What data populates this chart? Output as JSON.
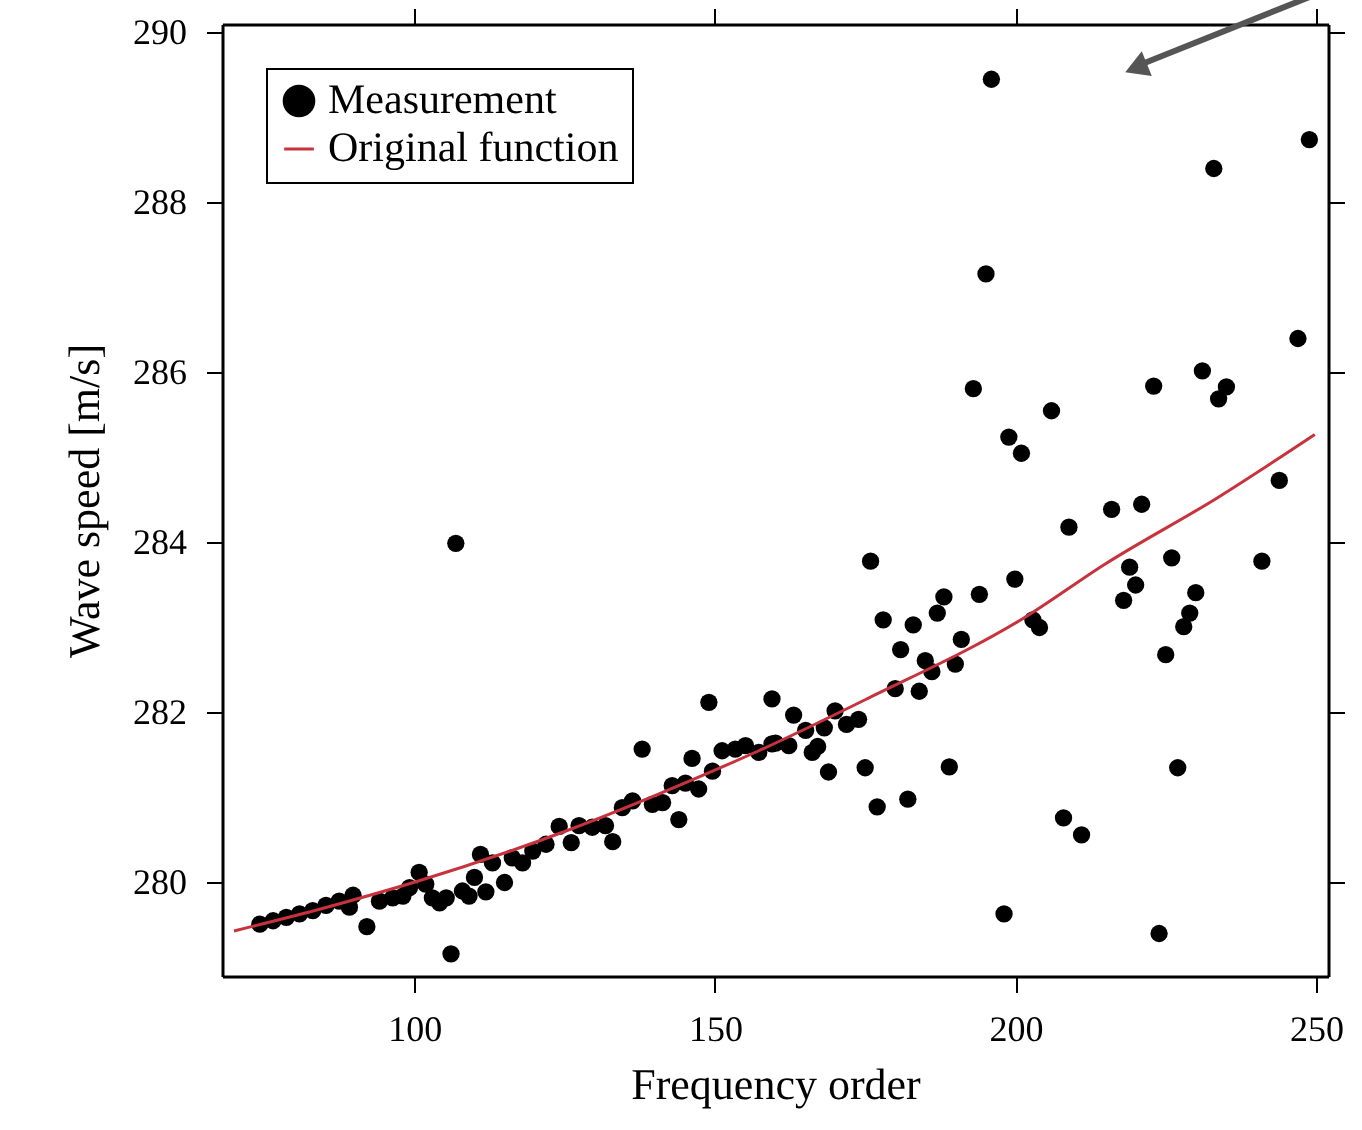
{
  "chart_data": {
    "type": "scatter",
    "xlabel": "Frequency order",
    "ylabel": "Wave speed  [m/s]",
    "xlim": [
      68,
      252
    ],
    "ylim": [
      278.9,
      290.1
    ],
    "xticks": [
      100,
      150,
      200,
      250
    ],
    "yticks": [
      280,
      282,
      284,
      286,
      288,
      290
    ],
    "grid": false,
    "legend": "top left",
    "marker": "circle",
    "series": [
      {
        "name": "Measurement",
        "color": "#000000",
        "x": [
          74.3,
          76.5,
          78.7,
          80.9,
          83.1,
          85.3,
          87.5,
          89.8,
          89.2,
          92.1,
          94.2,
          96.4,
          98.1,
          99.2,
          100.8,
          101.9,
          103.0,
          104.2,
          105.3,
          106.1,
          106.9,
          108.0,
          109.1,
          110.0,
          111.0,
          111.9,
          113.0,
          115.0,
          116.3,
          118.0,
          119.7,
          121.9,
          124.1,
          126.1,
          127.4,
          129.6,
          131.8,
          133.0,
          134.6,
          136.3,
          137.9,
          139.6,
          141.3,
          142.9,
          144.0,
          145.1,
          146.2,
          147.3,
          149.0,
          149.6,
          151.2,
          153.4,
          155.1,
          157.3,
          159.5,
          160.1,
          159.5,
          162.3,
          163.1,
          165.1,
          166.2,
          167.1,
          168.2,
          168.9,
          170.0,
          171.9,
          173.9,
          175.0,
          175.9,
          177.0,
          178.0,
          180.0,
          180.9,
          182.1,
          183.0,
          184.0,
          185.0,
          186.1,
          187.0,
          188.1,
          189.0,
          190.0,
          191.0,
          194.0,
          198.1,
          199.9,
          202.9,
          204.0,
          208.0,
          208.9,
          211.0,
          216.0,
          218.0,
          219.0,
          220.0,
          221.0,
          223.9,
          225.0,
          226.0,
          227.0,
          228.0,
          229.0,
          230.0,
          241.0,
          196.0,
          195.1,
          193.0,
          198.9,
          201.0,
          206.0,
          223.0,
          231.1,
          233.0,
          233.8,
          235.1,
          243.9,
          247.0,
          248.9
        ],
        "values": [
          279.51,
          279.55,
          279.59,
          279.63,
          279.67,
          279.73,
          279.78,
          279.85,
          279.71,
          279.48,
          279.78,
          279.82,
          279.84,
          279.94,
          280.12,
          279.98,
          279.82,
          279.76,
          279.82,
          279.16,
          283.99,
          279.9,
          279.84,
          280.06,
          280.33,
          279.89,
          280.23,
          280.0,
          280.29,
          280.23,
          280.37,
          280.45,
          280.66,
          280.47,
          280.67,
          280.65,
          280.67,
          280.48,
          280.88,
          280.96,
          281.57,
          280.92,
          280.94,
          281.14,
          280.74,
          281.17,
          281.46,
          281.1,
          282.12,
          281.31,
          281.55,
          281.57,
          281.61,
          281.53,
          282.16,
          281.64,
          281.63,
          281.61,
          281.97,
          281.79,
          281.53,
          281.6,
          281.82,
          281.3,
          282.02,
          281.86,
          281.92,
          281.35,
          283.78,
          280.89,
          283.09,
          282.28,
          282.74,
          280.98,
          283.03,
          282.25,
          282.61,
          282.48,
          283.17,
          283.36,
          281.36,
          282.57,
          282.86,
          283.39,
          279.63,
          283.57,
          283.09,
          283.0,
          280.76,
          284.18,
          280.56,
          284.39,
          283.32,
          283.71,
          283.5,
          284.45,
          279.4,
          282.68,
          283.82,
          281.35,
          283.01,
          283.17,
          283.41,
          283.78,
          289.45,
          287.16,
          285.81,
          285.24,
          285.05,
          285.55,
          285.84,
          286.02,
          288.4,
          285.69,
          285.83,
          284.73,
          286.4,
          288.74
        ]
      },
      {
        "name": "Original function",
        "type": "line",
        "marker": "none",
        "color": "#c8323c",
        "line_style": "solid",
        "x": [
          70,
          85,
          100.8,
          125,
          149.6,
          157.3,
          175,
          201.6,
          215,
          233.7,
          249.8
        ],
        "values": [
          279.43,
          279.7,
          280.02,
          280.6,
          281.31,
          281.55,
          282.15,
          283.12,
          283.75,
          284.53,
          285.27
        ]
      }
    ]
  }
}
